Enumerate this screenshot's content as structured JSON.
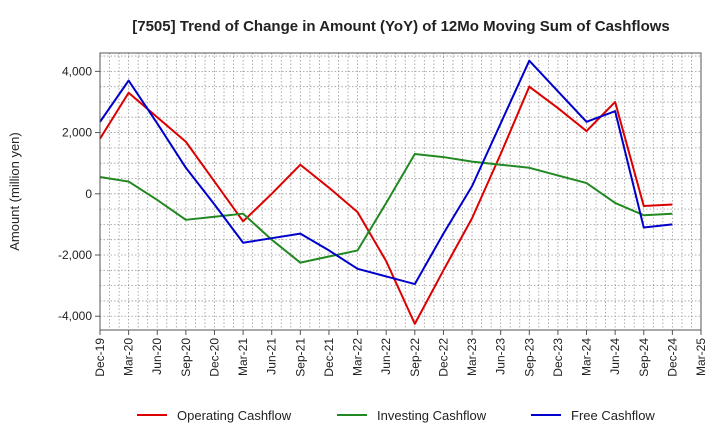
{
  "chart_data": {
    "type": "line",
    "title": "[7505]  Trend of Change in Amount (YoY) of 12Mo Moving Sum of Cashflows",
    "xlabel": "",
    "ylabel": "Amount (million yen)",
    "ylim": [
      -4450,
      4600
    ],
    "yticks": [
      -4000,
      -2000,
      0,
      2000,
      4000
    ],
    "ytick_labels": [
      "-4,000",
      "-2,000",
      "0",
      "2,000",
      "4,000"
    ],
    "grid": true,
    "legend_position": "bottom",
    "categories": [
      "Dec-19",
      "Mar-20",
      "Jun-20",
      "Sep-20",
      "Dec-20",
      "Mar-21",
      "Jun-21",
      "Sep-21",
      "Dec-21",
      "Mar-22",
      "Jun-22",
      "Sep-22",
      "Dec-22",
      "Mar-23",
      "Jun-23",
      "Sep-23",
      "Dec-23",
      "Mar-24",
      "Jun-24",
      "Sep-24",
      "Dec-24",
      "Mar-25"
    ],
    "series": [
      {
        "name": "Operating Cashflow",
        "color": "#dd0000",
        "values": [
          1800,
          3300,
          2500,
          1700,
          400,
          -900,
          0,
          950,
          200,
          -600,
          -2200,
          -4250,
          -2500,
          -800,
          1300,
          3500,
          2800,
          2050,
          3000,
          -400,
          -350,
          null
        ]
      },
      {
        "name": "Investing Cashflow",
        "color": "#228822",
        "values": [
          550,
          400,
          -200,
          -850,
          -750,
          -650,
          -1500,
          -2250,
          -2050,
          -1850,
          -300,
          1300,
          1200,
          1050,
          950,
          850,
          600,
          350,
          -300,
          -700,
          -650,
          null
        ]
      },
      {
        "name": "Free Cashflow",
        "color": "#0000cc",
        "values": [
          2350,
          3700,
          2300,
          850,
          -350,
          -1600,
          -1450,
          -1300,
          -1850,
          -2450,
          -2700,
          -2950,
          -1300,
          250,
          2300,
          4350,
          3350,
          2350,
          2700,
          -1100,
          -1000,
          null
        ]
      }
    ]
  }
}
